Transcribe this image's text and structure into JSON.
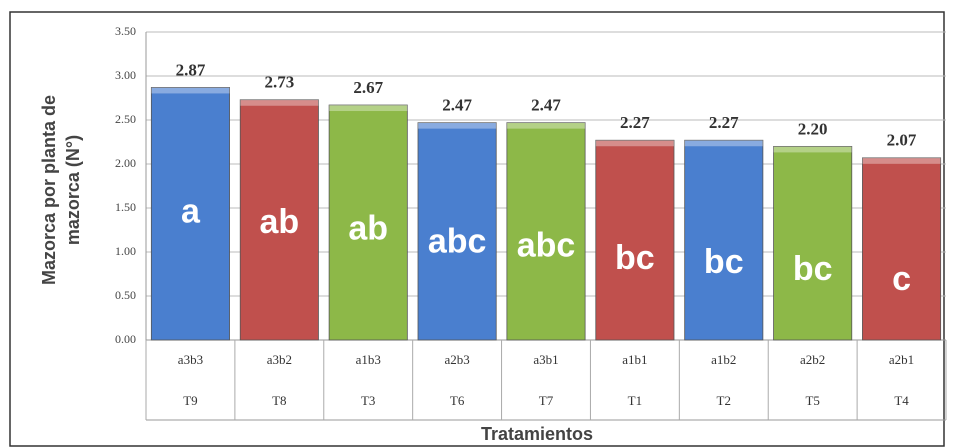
{
  "chart_data": {
    "type": "bar",
    "y_label_lines": [
      "Mazorca por planta de",
      "mazorca (N°)"
    ],
    "x_label": "Tratamientos",
    "categories": [
      "a3b3",
      "a3b2",
      "a1b3",
      "a2b3",
      "a3b1",
      "a1b1",
      "a1b2",
      "a2b2",
      "a2b1"
    ],
    "treatments": [
      "T9",
      "T8",
      "T3",
      "T6",
      "T7",
      "T1",
      "T2",
      "T5",
      "T4"
    ],
    "values": [
      2.87,
      2.73,
      2.67,
      2.47,
      2.47,
      2.27,
      2.27,
      2.2,
      2.07
    ],
    "value_labels": [
      "2.87",
      "2.73",
      "2.67",
      "2.47",
      "2.47",
      "2.27",
      "2.27",
      "2.20",
      "2.07"
    ],
    "group_labels": [
      "a",
      "ab",
      "ab",
      "abc",
      "abc",
      "bc",
      "bc",
      "bc",
      "c"
    ],
    "colors": [
      "#4a7fcf",
      "#c0504d",
      "#8db848",
      "#4a7fcf",
      "#8db848",
      "#c0504d",
      "#4a7fcf",
      "#8db848",
      "#c0504d"
    ],
    "ylim": [
      0,
      3.5
    ],
    "yticks": [
      {
        "value": 0,
        "label": "0.00"
      },
      {
        "value": 0.5,
        "label": "0.50"
      },
      {
        "value": 1,
        "label": "1.00"
      },
      {
        "value": 1.5,
        "label": "1.50"
      },
      {
        "value": 2,
        "label": "2.00"
      },
      {
        "value": 2.5,
        "label": "2.50"
      },
      {
        "value": 3,
        "label": "3.00"
      },
      {
        "value": 3.5,
        "label": "3.50"
      }
    ],
    "grid": true
  }
}
